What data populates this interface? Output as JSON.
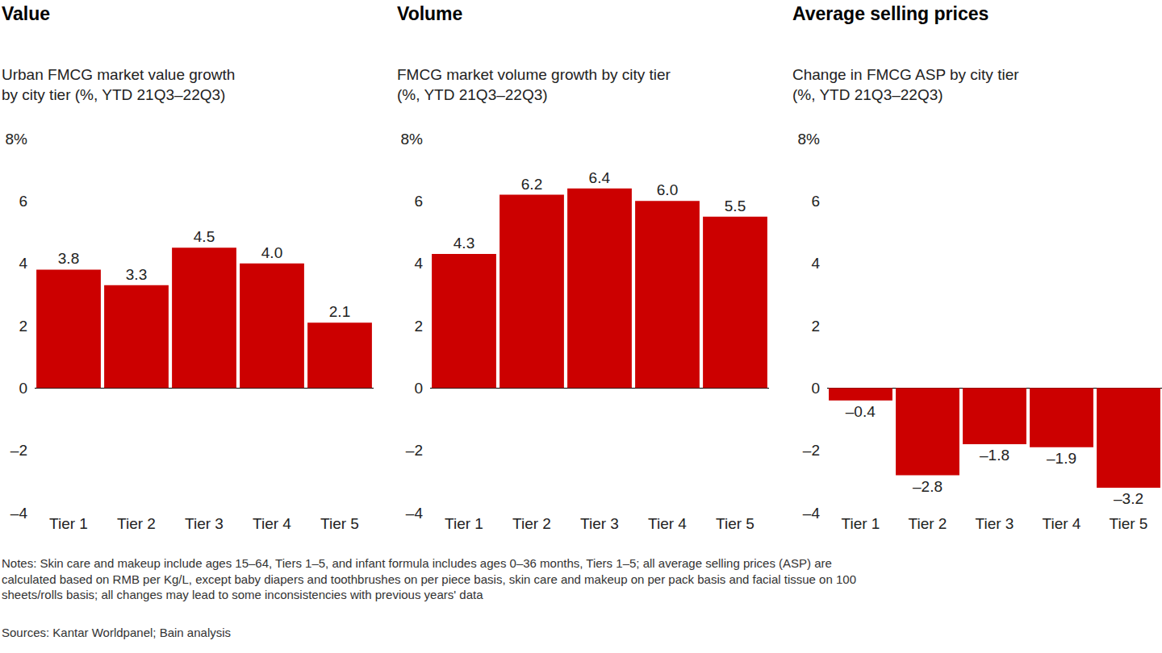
{
  "chart_data": [
    {
      "type": "bar",
      "title": "Value",
      "subtitle": "Urban FMCG market value growth\nby city tier (%, YTD 21Q3–22Q3)",
      "categories": [
        "Tier 1",
        "Tier 2",
        "Tier 3",
        "Tier 4",
        "Tier 5"
      ],
      "values": [
        3.8,
        3.3,
        4.5,
        4.0,
        2.1
      ],
      "value_labels": [
        "3.8",
        "3.3",
        "4.5",
        "4.0",
        "2.1"
      ],
      "color": "#cc0000",
      "data_labels": true,
      "grid": false,
      "ylim": [
        -4,
        8
      ],
      "yticks": [
        {
          "value": -4,
          "label": "–4"
        },
        {
          "value": -2,
          "label": "–2"
        },
        0,
        2,
        4,
        6,
        {
          "value": 8,
          "label": "8%"
        }
      ]
    },
    {
      "type": "bar",
      "title": "Volume",
      "subtitle": "FMCG market volume growth by city tier\n(%, YTD 21Q3–22Q3)",
      "categories": [
        "Tier 1",
        "Tier 2",
        "Tier 3",
        "Tier 4",
        "Tier 5"
      ],
      "values": [
        4.3,
        6.2,
        6.4,
        6.0,
        5.5
      ],
      "value_labels": [
        "4.3",
        "6.2",
        "6.4",
        "6.0",
        "5.5"
      ],
      "color": "#cc0000",
      "data_labels": true,
      "grid": false,
      "ylim": [
        -4,
        8
      ],
      "yticks": [
        {
          "value": -4,
          "label": "–4"
        },
        {
          "value": -2,
          "label": "–2"
        },
        0,
        2,
        4,
        6,
        {
          "value": 8,
          "label": "8%"
        }
      ]
    },
    {
      "type": "bar",
      "title": "Average selling prices",
      "subtitle": "Change in FMCG ASP by city tier\n(%, YTD 21Q3–22Q3)",
      "categories": [
        "Tier 1",
        "Tier 2",
        "Tier 3",
        "Tier 4",
        "Tier 5"
      ],
      "values": [
        -0.4,
        -2.8,
        -1.8,
        -1.9,
        -3.2
      ],
      "value_labels": [
        "–0.4",
        "–2.8",
        "–1.8",
        "–1.9",
        "–3.2"
      ],
      "color": "#cc0000",
      "data_labels": true,
      "grid": false,
      "ylim": [
        -4,
        8
      ],
      "yticks": [
        {
          "value": -4,
          "label": "–4"
        },
        {
          "value": -2,
          "label": "–2"
        },
        0,
        2,
        4,
        6,
        {
          "value": 8,
          "label": "8%"
        }
      ]
    }
  ],
  "notes": "Notes: Skin care and makeup include ages 15–64, Tiers 1–5, and infant formula includes ages 0–36 months, Tiers 1–5; all average selling prices (ASP) are\ncalculated based on RMB per Kg/L, except baby diapers and toothbrushes on per piece basis, skin care and makeup on per pack basis and facial tissue on 100\nsheets/rolls basis; all changes may lead to some inconsistencies with previous years' data",
  "sources": "Sources: Kantar Worldpanel; Bain analysis"
}
